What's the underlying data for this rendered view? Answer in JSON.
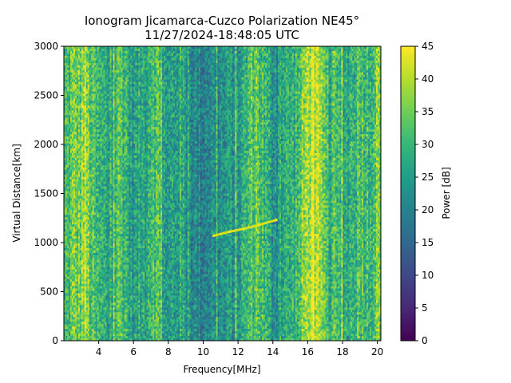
{
  "chart_data": {
    "type": "heatmap",
    "title": [
      "Ionogram Jicamarca-Cuzco Polarization NE45°",
      "11/27/2024-18:48:05 UTC"
    ],
    "xlabel": "Frequency[MHz]",
    "ylabel": "Virtual Distance[km]",
    "xlim": [
      2.0,
      20.2
    ],
    "ylim": [
      0,
      3000
    ],
    "xticks": [
      4,
      6,
      8,
      10,
      12,
      14,
      16,
      18,
      20
    ],
    "xtick_labels": [
      "4",
      "6",
      "8",
      "10",
      "12",
      "14",
      "16",
      "18",
      "20"
    ],
    "yticks": [
      0,
      500,
      1000,
      1500,
      2000,
      2500,
      3000
    ],
    "ytick_labels": [
      "0",
      "500",
      "1000",
      "1500",
      "2000",
      "2500",
      "3000"
    ],
    "colorbar": {
      "label": "Power [dB]",
      "range": [
        0,
        45
      ],
      "ticks": [
        0,
        5,
        10,
        15,
        20,
        25,
        30,
        35,
        40,
        45
      ],
      "tick_labels": [
        "0",
        "5",
        "10",
        "15",
        "20",
        "25",
        "30",
        "35",
        "40",
        "45"
      ],
      "colormap": "viridis"
    },
    "frequency_bands_mhz": [
      {
        "f": 2.2,
        "db": 30
      },
      {
        "f": 2.6,
        "db": 35
      },
      {
        "f": 2.9,
        "db": 34
      },
      {
        "f": 3.2,
        "db": 40
      },
      {
        "f": 3.5,
        "db": 32
      },
      {
        "f": 3.9,
        "db": 29
      },
      {
        "f": 4.3,
        "db": 27
      },
      {
        "f": 4.7,
        "db": 25
      },
      {
        "f": 5.1,
        "db": 33
      },
      {
        "f": 5.5,
        "db": 31
      },
      {
        "f": 5.9,
        "db": 24
      },
      {
        "f": 6.3,
        "db": 26
      },
      {
        "f": 6.7,
        "db": 28
      },
      {
        "f": 7.1,
        "db": 33
      },
      {
        "f": 7.5,
        "db": 31
      },
      {
        "f": 7.9,
        "db": 22
      },
      {
        "f": 8.3,
        "db": 26
      },
      {
        "f": 8.7,
        "db": 27
      },
      {
        "f": 9.1,
        "db": 24
      },
      {
        "f": 9.5,
        "db": 21
      },
      {
        "f": 9.9,
        "db": 20
      },
      {
        "f": 10.3,
        "db": 22
      },
      {
        "f": 10.7,
        "db": 22
      },
      {
        "f": 11.1,
        "db": 22
      },
      {
        "f": 11.5,
        "db": 24
      },
      {
        "f": 11.9,
        "db": 24
      },
      {
        "f": 12.3,
        "db": 27
      },
      {
        "f": 12.7,
        "db": 32
      },
      {
        "f": 13.1,
        "db": 34
      },
      {
        "f": 13.5,
        "db": 30
      },
      {
        "f": 13.9,
        "db": 24
      },
      {
        "f": 14.3,
        "db": 25
      },
      {
        "f": 14.7,
        "db": 27
      },
      {
        "f": 15.1,
        "db": 28
      },
      {
        "f": 15.5,
        "db": 31
      },
      {
        "f": 15.9,
        "db": 38
      },
      {
        "f": 16.3,
        "db": 42
      },
      {
        "f": 16.7,
        "db": 36
      },
      {
        "f": 17.1,
        "db": 30
      },
      {
        "f": 17.5,
        "db": 28
      },
      {
        "f": 17.9,
        "db": 30
      },
      {
        "f": 18.3,
        "db": 27
      },
      {
        "f": 18.7,
        "db": 31
      },
      {
        "f": 19.1,
        "db": 33
      },
      {
        "f": 19.5,
        "db": 30
      },
      {
        "f": 19.9,
        "db": 34
      }
    ],
    "echo_trace": [
      {
        "f": 10.6,
        "km": 1070
      },
      {
        "f": 11.5,
        "km": 1110
      },
      {
        "f": 12.3,
        "km": 1140
      },
      {
        "f": 13.2,
        "km": 1180
      },
      {
        "f": 14.2,
        "km": 1230
      }
    ]
  }
}
